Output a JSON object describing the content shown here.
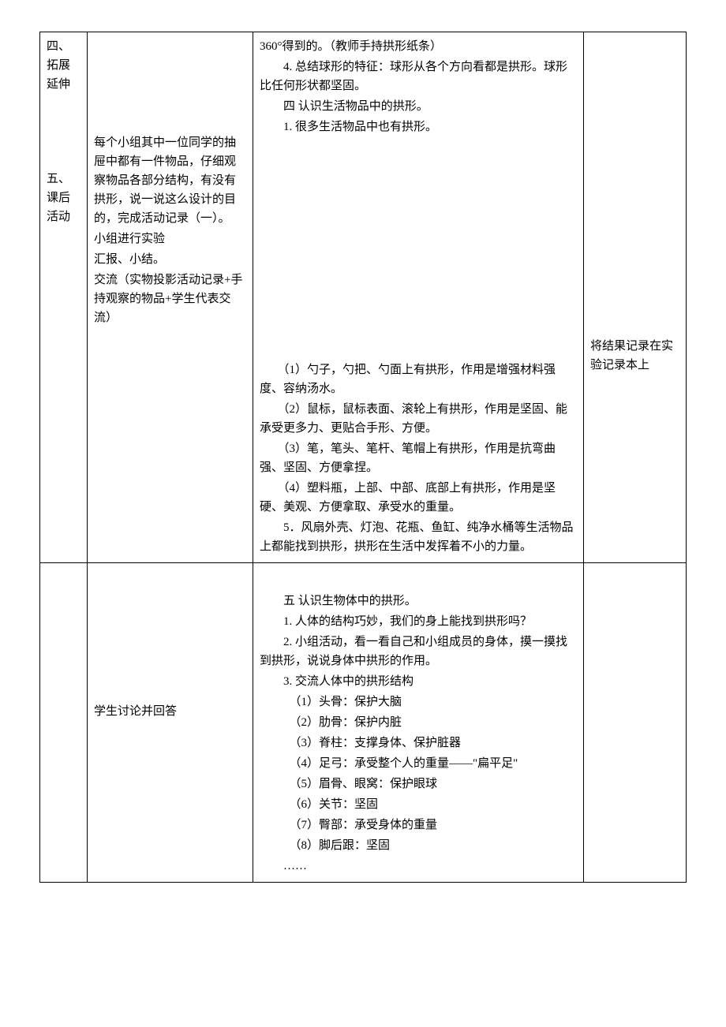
{
  "document": {
    "font_family": "SimSun",
    "font_size_pt": 12,
    "text_color": "#000000",
    "background_color": "#ffffff",
    "border_color": "#000000",
    "table": {
      "column_widths_pct": [
        7,
        26,
        51,
        16
      ],
      "rows": [
        {
          "col1": "四、拓展延伸\n\n\n\n\n五、课后　活动",
          "col2_parts": [
            "",
            "每个小组其中一位同学的抽屉中都有一件物品，仔细观察物品各部分结构，有没有拱形，说一说这么设计的目的，完成活动记录（一）。",
            "小组进行实验",
            "汇报、小结。",
            "交流（实物投影活动记录+手持观察的物品+学生代表交流）"
          ],
          "col2_spacing_before": [
            "0",
            "120px",
            "0",
            "0",
            "0"
          ],
          "col3_parts": [
            "360°得到的。（教师手持拱形纸条）",
            "　　4. 总结球形的特征：球形从各个方向看都是拱形。球形比任何形状都坚固。",
            "　　四 认识生活物品中的拱形。",
            "　　1. 很多生活物品中也有拱形。",
            "",
            "　　（1）勺子，勺把、勺面上有拱形，作用是增强材料强度、容纳汤水。",
            "　　（2）鼠标，鼠标表面、滚轮上有拱形，作用是坚固、能承受更多力、更贴合手形、方便。",
            "　　（3）笔，笔头、笔杆、笔帽上有拱形，作用是抗弯曲强、坚固、方便拿捏。",
            "　　（4）塑料瓶，上部、中部、底部上有拱形，作用是坚硬、美观、方便拿取、承受水的重量。",
            "　　5．风扇外壳、灯泡、花瓶、鱼缸、纯净水桶等生活物品上都能找到拱形，拱形在生活中发挥着不小的力量。"
          ],
          "col3_spacing_before": [
            "0",
            "0",
            "0",
            "0",
            "0",
            "280px",
            "0",
            "0",
            "0",
            "0"
          ],
          "col4": "将结果记录在实验记录本上",
          "col4_spacing_before": "380px"
        },
        {
          "col1": "",
          "col2_parts": [
            "学生讨论并回答"
          ],
          "col2_spacing_before": [
            "170px"
          ],
          "col3_parts": [
            "　　五 认识生物体中的拱形。",
            "　　1. 人体的结构巧妙，我们的身上能找到拱形吗？",
            "　　2. 小组活动，看一看自己和小组成员的身体，摸一摸找到拱形，说说身体中拱形的作用。",
            "　　3. 交流人体中的拱形结构",
            "　　　（1）头骨：保护大脑",
            "　　　（2）肋骨：保护内脏",
            "　　　（3）脊柱：支撑身体、保护脏器",
            "　　　（4）足弓：承受整个人的重量——\"扁平足\"",
            "　　　（5）眉骨、眼窝：保护眼球",
            "　　　（6）关节：坚固",
            "　　　（7）臀部：承受身体的重量",
            "　　　（8）脚后跟：坚固",
            "　　……"
          ],
          "col3_spacing_before": [
            "30px",
            "0",
            "0",
            "0",
            "0",
            "0",
            "0",
            "0",
            "0",
            "0",
            "0",
            "0",
            "0"
          ],
          "col4": ""
        }
      ]
    }
  }
}
